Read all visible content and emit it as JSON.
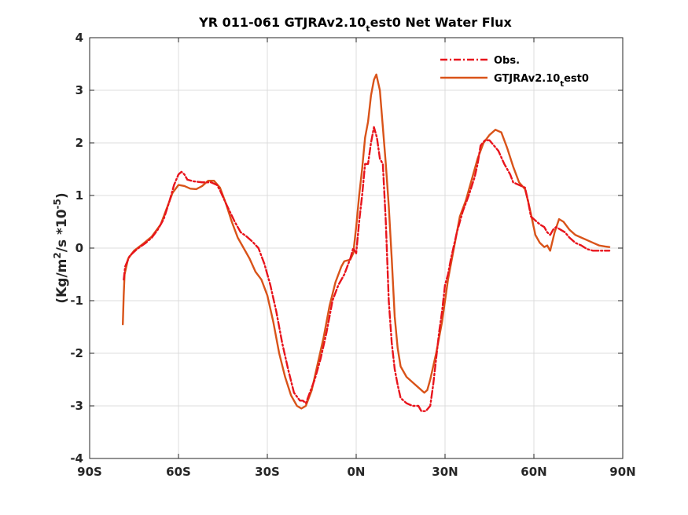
{
  "chart_data": {
    "type": "line",
    "title": {
      "prefix": "YR 011-061 GTJRAv2.10",
      "subscript": "t",
      "suffix": "est0  Net Water Flux"
    },
    "ylabel": {
      "part1": "(Kg/m",
      "sup1": "2",
      "part2": "/s *10",
      "sup2": "-5",
      "part3": ")"
    },
    "xlim": [
      -90,
      90
    ],
    "ylim": [
      -4,
      4
    ],
    "xticks": [
      -90,
      -60,
      -30,
      0,
      30,
      60,
      90
    ],
    "xtick_labels": [
      "90S",
      "60S",
      "30S",
      "0N",
      "30N",
      "60N",
      "90N"
    ],
    "yticks": [
      -4,
      -3,
      -2,
      -1,
      0,
      1,
      2,
      3,
      4
    ],
    "ytick_labels": [
      "-4",
      "-3",
      "-2",
      "-1",
      "0",
      "1",
      "2",
      "3",
      "4"
    ],
    "grid": true,
    "legend_position": "top-right",
    "series": [
      {
        "name": "Obs.",
        "legend_label": "Obs.",
        "color": "#e8141c",
        "style": "dash-dot",
        "points": [
          [
            -78.5,
            -0.6
          ],
          [
            -78.0,
            -0.35
          ],
          [
            -76.5,
            -0.15
          ],
          [
            -74,
            -0.02
          ],
          [
            -71,
            0.1
          ],
          [
            -69,
            0.2
          ],
          [
            -67,
            0.35
          ],
          [
            -65,
            0.55
          ],
          [
            -63,
            0.9
          ],
          [
            -61.5,
            1.2
          ],
          [
            -60,
            1.4
          ],
          [
            -59,
            1.45
          ],
          [
            -58,
            1.4
          ],
          [
            -57,
            1.3
          ],
          [
            -55,
            1.27
          ],
          [
            -52,
            1.25
          ],
          [
            -49,
            1.25
          ],
          [
            -47,
            1.2
          ],
          [
            -46,
            1.1
          ],
          [
            -44,
            0.85
          ],
          [
            -41,
            0.5
          ],
          [
            -39,
            0.3
          ],
          [
            -37,
            0.22
          ],
          [
            -35,
            0.12
          ],
          [
            -33,
            0.0
          ],
          [
            -31,
            -0.3
          ],
          [
            -29,
            -0.7
          ],
          [
            -27,
            -1.2
          ],
          [
            -25,
            -1.8
          ],
          [
            -23,
            -2.3
          ],
          [
            -21,
            -2.75
          ],
          [
            -19,
            -2.9
          ],
          [
            -18,
            -2.9
          ],
          [
            -17,
            -2.95
          ],
          [
            -16,
            -2.8
          ],
          [
            -14,
            -2.5
          ],
          [
            -12,
            -2.1
          ],
          [
            -10,
            -1.6
          ],
          [
            -8,
            -1.0
          ],
          [
            -6,
            -0.7
          ],
          [
            -4,
            -0.5
          ],
          [
            -3,
            -0.35
          ],
          [
            -2,
            -0.2
          ],
          [
            -1,
            0.0
          ],
          [
            0,
            -0.1
          ],
          [
            1,
            0.5
          ],
          [
            2,
            1.0
          ],
          [
            3,
            1.6
          ],
          [
            4,
            1.6
          ],
          [
            5,
            2.0
          ],
          [
            6,
            2.3
          ],
          [
            7,
            2.1
          ],
          [
            8,
            1.7
          ],
          [
            9,
            1.6
          ],
          [
            10,
            0.5
          ],
          [
            11,
            -1.0
          ],
          [
            12,
            -1.8
          ],
          [
            13,
            -2.3
          ],
          [
            14,
            -2.6
          ],
          [
            15,
            -2.85
          ],
          [
            17,
            -2.95
          ],
          [
            19,
            -3.0
          ],
          [
            21,
            -3.0
          ],
          [
            22,
            -3.1
          ],
          [
            23.5,
            -3.1
          ],
          [
            25,
            -3.0
          ],
          [
            26,
            -2.6
          ],
          [
            27,
            -2.1
          ],
          [
            28,
            -1.6
          ],
          [
            29,
            -1.2
          ],
          [
            30,
            -0.7
          ],
          [
            31,
            -0.5
          ],
          [
            32,
            -0.2
          ],
          [
            34,
            0.3
          ],
          [
            36,
            0.7
          ],
          [
            38,
            1.0
          ],
          [
            40,
            1.35
          ],
          [
            41,
            1.6
          ],
          [
            42,
            1.95
          ],
          [
            43.5,
            2.05
          ],
          [
            45,
            2.05
          ],
          [
            46.5,
            1.95
          ],
          [
            48,
            1.85
          ],
          [
            50,
            1.6
          ],
          [
            52,
            1.4
          ],
          [
            53,
            1.25
          ],
          [
            55,
            1.2
          ],
          [
            57,
            1.15
          ],
          [
            58,
            0.9
          ],
          [
            59,
            0.6
          ],
          [
            61,
            0.5
          ],
          [
            62,
            0.45
          ],
          [
            63.5,
            0.4
          ],
          [
            64.5,
            0.3
          ],
          [
            65.5,
            0.25
          ],
          [
            66.5,
            0.35
          ],
          [
            67.5,
            0.4
          ],
          [
            69,
            0.35
          ],
          [
            70.5,
            0.3
          ],
          [
            72,
            0.2
          ],
          [
            74,
            0.1
          ],
          [
            76,
            0.05
          ],
          [
            78,
            -0.02
          ],
          [
            80,
            -0.05
          ],
          [
            82,
            -0.05
          ],
          [
            84,
            -0.05
          ],
          [
            85.5,
            -0.05
          ]
        ]
      },
      {
        "name": "GTJRAv2.10_test0",
        "legend_label_prefix": "GTJRAv2.10",
        "legend_label_subscript": "t",
        "legend_label_suffix": "est0",
        "color": "#d95319",
        "style": "solid",
        "points": [
          [
            -78.8,
            -1.45
          ],
          [
            -78.5,
            -0.9
          ],
          [
            -78.2,
            -0.5
          ],
          [
            -77,
            -0.2
          ],
          [
            -75,
            -0.05
          ],
          [
            -72,
            0.08
          ],
          [
            -69,
            0.22
          ],
          [
            -66,
            0.45
          ],
          [
            -64,
            0.75
          ],
          [
            -62,
            1.05
          ],
          [
            -60,
            1.2
          ],
          [
            -58,
            1.18
          ],
          [
            -56,
            1.13
          ],
          [
            -54,
            1.12
          ],
          [
            -52,
            1.18
          ],
          [
            -50,
            1.28
          ],
          [
            -48,
            1.28
          ],
          [
            -46,
            1.15
          ],
          [
            -44,
            0.85
          ],
          [
            -42,
            0.5
          ],
          [
            -40,
            0.2
          ],
          [
            -38,
            0.0
          ],
          [
            -36,
            -0.2
          ],
          [
            -34,
            -0.45
          ],
          [
            -32,
            -0.6
          ],
          [
            -30,
            -0.9
          ],
          [
            -28,
            -1.4
          ],
          [
            -26,
            -2.0
          ],
          [
            -24,
            -2.45
          ],
          [
            -22,
            -2.8
          ],
          [
            -20,
            -3.0
          ],
          [
            -18.5,
            -3.05
          ],
          [
            -17,
            -3.0
          ],
          [
            -15,
            -2.7
          ],
          [
            -13,
            -2.2
          ],
          [
            -11,
            -1.7
          ],
          [
            -9,
            -1.1
          ],
          [
            -7,
            -0.65
          ],
          [
            -5,
            -0.35
          ],
          [
            -4,
            -0.25
          ],
          [
            -2,
            -0.22
          ],
          [
            -1,
            -0.1
          ],
          [
            0,
            0.4
          ],
          [
            1,
            1.0
          ],
          [
            2,
            1.5
          ],
          [
            3,
            2.1
          ],
          [
            4,
            2.4
          ],
          [
            5,
            2.9
          ],
          [
            6,
            3.2
          ],
          [
            6.8,
            3.3
          ],
          [
            8,
            3.0
          ],
          [
            9,
            2.3
          ],
          [
            10,
            1.6
          ],
          [
            11,
            0.8
          ],
          [
            12,
            -0.2
          ],
          [
            13,
            -1.3
          ],
          [
            14,
            -1.9
          ],
          [
            15,
            -2.25
          ],
          [
            17,
            -2.45
          ],
          [
            19,
            -2.55
          ],
          [
            21,
            -2.65
          ],
          [
            23,
            -2.75
          ],
          [
            24,
            -2.7
          ],
          [
            25,
            -2.5
          ],
          [
            27,
            -2.0
          ],
          [
            29,
            -1.4
          ],
          [
            30,
            -1.0
          ],
          [
            31,
            -0.6
          ],
          [
            33,
            0.0
          ],
          [
            35,
            0.6
          ],
          [
            37,
            0.9
          ],
          [
            39,
            1.3
          ],
          [
            41,
            1.7
          ],
          [
            43,
            2.0
          ],
          [
            45,
            2.15
          ],
          [
            47,
            2.25
          ],
          [
            49,
            2.2
          ],
          [
            51,
            1.9
          ],
          [
            53,
            1.55
          ],
          [
            55,
            1.25
          ],
          [
            57,
            1.12
          ],
          [
            58,
            0.9
          ],
          [
            59,
            0.65
          ],
          [
            60.5,
            0.25
          ],
          [
            62,
            0.1
          ],
          [
            63.5,
            0.02
          ],
          [
            64.5,
            0.05
          ],
          [
            65.5,
            -0.05
          ],
          [
            67,
            0.3
          ],
          [
            68.5,
            0.55
          ],
          [
            70,
            0.5
          ],
          [
            72,
            0.35
          ],
          [
            74,
            0.25
          ],
          [
            76,
            0.2
          ],
          [
            78,
            0.15
          ],
          [
            80,
            0.1
          ],
          [
            82,
            0.05
          ],
          [
            84,
            0.03
          ],
          [
            85.5,
            0.02
          ]
        ]
      }
    ]
  }
}
